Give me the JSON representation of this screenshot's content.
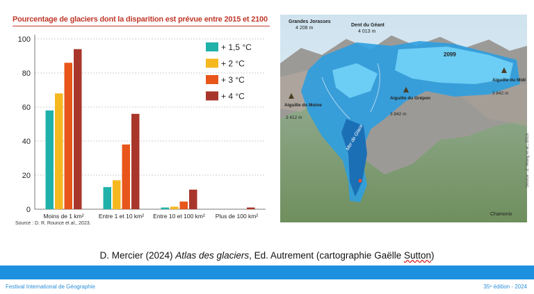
{
  "chart_data": {
    "type": "bar",
    "title": "Pourcentage de glaciers dont la disparition est prévue entre 2015 et 2100",
    "categories": [
      "Moins de 1 km²",
      "Entre 1 et 10 km²",
      "Entre 10 et 100 km²",
      "Plus de 100 km²"
    ],
    "series": [
      {
        "name": "+ 1,5 °C",
        "color": "#20b2aa",
        "values": [
          58,
          13,
          1,
          0
        ]
      },
      {
        "name": "+ 2 °C",
        "color": "#f6b81f",
        "values": [
          68,
          17,
          1.5,
          0
        ]
      },
      {
        "name": "+ 3 °C",
        "color": "#e8561a",
        "values": [
          86,
          38,
          4.5,
          0
        ]
      },
      {
        "name": "+ 4 °C",
        "color": "#a9362a",
        "values": [
          94,
          56,
          11.5,
          1
        ]
      }
    ],
    "ylim": [
      0,
      100
    ],
    "yticks": [
      "0",
      "20",
      "40",
      "60",
      "80",
      "100"
    ],
    "grid": true,
    "legend": "top-right",
    "source": "Source : D. R. Rounce et al., 2023."
  },
  "map": {
    "labels": {
      "grandes_jorasses": "Grandes Jorasses",
      "grandes_jorasses_alt": "4 208 m",
      "dent_du_geant": "Dent du Géant",
      "dent_du_geant_alt": "4 013 m",
      "year": "2099",
      "aiguille_du_midi": "Aiguille du Midi",
      "aiguille_du_midi_alt": "3 842 m",
      "aiguille_du_moine": "Aiguille du Moine",
      "aiguille_du_moine_alt": "3 412 m",
      "aiguille_du_grepon": "Aiguille du Grépon",
      "aiguille_du_grepon_alt": "3 842 m",
      "mer_de_glace": "Mer de Glace",
      "chamonix": "Chamonix"
    },
    "source": "Source : Z. Wang et al., 2019."
  },
  "caption": {
    "part1": "D. Mercier (2024) ",
    "italic": "Atlas des glaciers",
    "part2": ", Ed. Autrement (cartographie Gaëlle ",
    "underlined": "Sutton",
    "part3": ")"
  },
  "footer": {
    "left": "Festival International de Géographie",
    "right": "35ᵉ édition - 2024"
  },
  "colors": {
    "band": "#1e90e0",
    "title": "#c0392b",
    "footer_text": "#2a8fd8"
  }
}
